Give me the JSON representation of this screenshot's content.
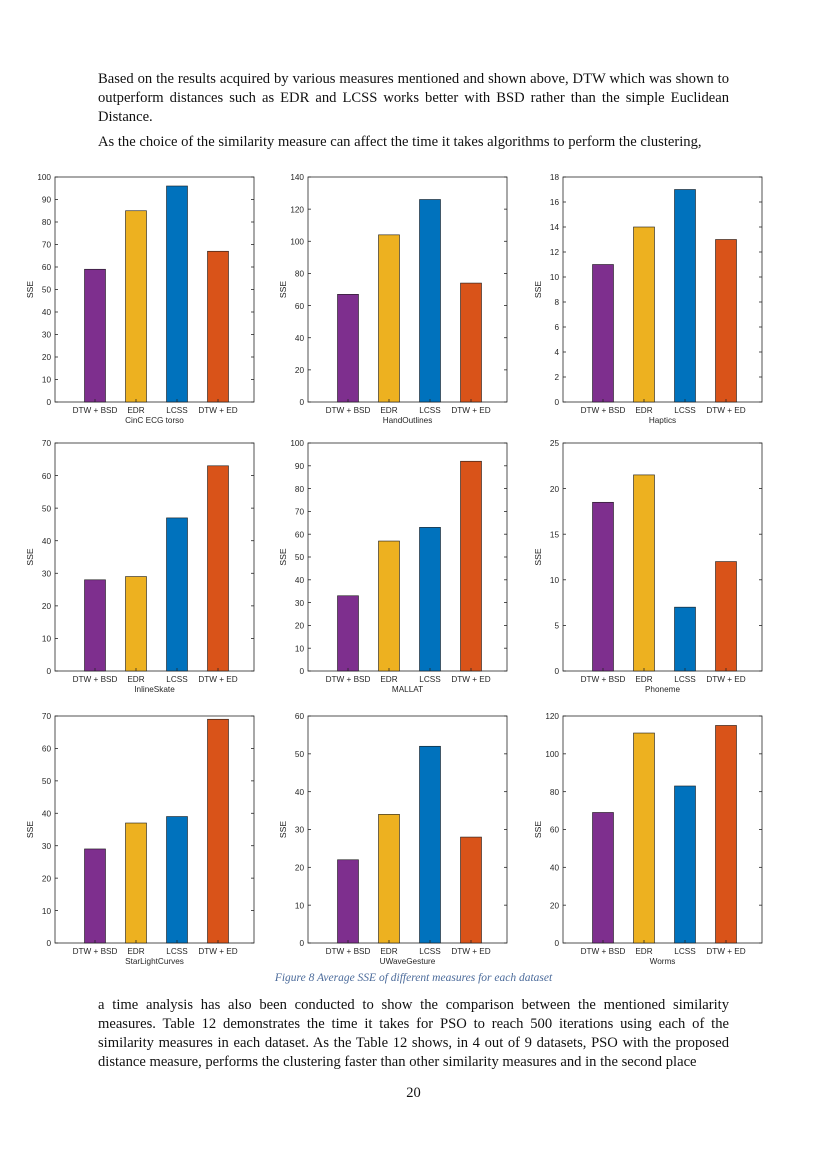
{
  "paragraphs": {
    "p1": "Based on the results acquired by various measures mentioned and shown above, DTW which was shown to outperform distances such as EDR and LCSS works better with BSD rather than the simple Euclidean Distance.",
    "p2": "As the choice of the similarity measure can affect the time it takes algorithms to perform the clustering,",
    "p3": "a time analysis has also been conducted to show the comparison between the mentioned similarity measures. Table 12 demonstrates the time it takes for PSO to reach 500 iterations using each of the similarity measures in each dataset. As the Table 12 shows, in 4 out of 9 datasets, PSO with the proposed distance measure, performs the clustering faster than other similarity measures and in the second place"
  },
  "figure_caption": "Figure 8 Average SSE of different measures for each dataset",
  "page_number": "20",
  "colors": {
    "DTW + BSD": "#7e2f8e",
    "EDR": "#edb120",
    "LCSS": "#0072bd",
    "DTW + ED": "#d95319",
    "caption": "#4a6a9a"
  },
  "chart_data": [
    {
      "type": "bar",
      "title": "CinC ECG torso",
      "ylabel": "SSE",
      "categories": [
        "DTW + BSD",
        "EDR",
        "LCSS",
        "DTW + ED"
      ],
      "values": [
        59,
        85,
        96,
        67
      ],
      "ylim": [
        0,
        100
      ],
      "yticks": [
        0,
        10,
        20,
        30,
        40,
        50,
        60,
        70,
        80,
        90,
        100
      ]
    },
    {
      "type": "bar",
      "title": "HandOutlines",
      "ylabel": "SSE",
      "categories": [
        "DTW + BSD",
        "EDR",
        "LCSS",
        "DTW + ED"
      ],
      "values": [
        67,
        104,
        126,
        74
      ],
      "ylim": [
        0,
        140
      ],
      "yticks": [
        0,
        20,
        40,
        60,
        80,
        100,
        120,
        140
      ]
    },
    {
      "type": "bar",
      "title": "Haptics",
      "ylabel": "SSE",
      "categories": [
        "DTW + BSD",
        "EDR",
        "LCSS",
        "DTW + ED"
      ],
      "values": [
        11,
        14,
        17,
        13
      ],
      "ylim": [
        0,
        18
      ],
      "yticks": [
        0,
        2,
        4,
        6,
        8,
        10,
        12,
        14,
        16,
        18
      ]
    },
    {
      "type": "bar",
      "title": "InlineSkate",
      "ylabel": "SSE",
      "categories": [
        "DTW + BSD",
        "EDR",
        "LCSS",
        "DTW + ED"
      ],
      "values": [
        28,
        29,
        47,
        63
      ],
      "ylim": [
        0,
        70
      ],
      "yticks": [
        0,
        10,
        20,
        30,
        40,
        50,
        60,
        70
      ]
    },
    {
      "type": "bar",
      "title": "MALLAT",
      "ylabel": "SSE",
      "categories": [
        "DTW + BSD",
        "EDR",
        "LCSS",
        "DTW + ED"
      ],
      "values": [
        33,
        57,
        63,
        92
      ],
      "ylim": [
        0,
        100
      ],
      "yticks": [
        0,
        10,
        20,
        30,
        40,
        50,
        60,
        70,
        80,
        90,
        100
      ]
    },
    {
      "type": "bar",
      "title": "Phoneme",
      "ylabel": "SSE",
      "categories": [
        "DTW + BSD",
        "EDR",
        "LCSS",
        "DTW + ED"
      ],
      "values": [
        18.5,
        21.5,
        7,
        12
      ],
      "ylim": [
        0,
        25
      ],
      "yticks": [
        0,
        5,
        10,
        15,
        20,
        25
      ]
    },
    {
      "type": "bar",
      "title": "StarLightCurves",
      "ylabel": "SSE",
      "categories": [
        "DTW + BSD",
        "EDR",
        "LCSS",
        "DTW + ED"
      ],
      "values": [
        29,
        37,
        39,
        69
      ],
      "ylim": [
        0,
        70
      ],
      "yticks": [
        0,
        10,
        20,
        30,
        40,
        50,
        60,
        70
      ]
    },
    {
      "type": "bar",
      "title": "UWaveGesture",
      "ylabel": "SSE",
      "categories": [
        "DTW + BSD",
        "EDR",
        "LCSS",
        "DTW + ED"
      ],
      "values": [
        22,
        34,
        52,
        28
      ],
      "ylim": [
        0,
        60
      ],
      "yticks": [
        0,
        10,
        20,
        30,
        40,
        50,
        60
      ]
    },
    {
      "type": "bar",
      "title": "Worms",
      "ylabel": "SSE",
      "categories": [
        "DTW + BSD",
        "EDR",
        "LCSS",
        "DTW + ED"
      ],
      "values": [
        69,
        111,
        83,
        115
      ],
      "ylim": [
        0,
        120
      ],
      "yticks": [
        0,
        20,
        40,
        60,
        80,
        100,
        120
      ]
    }
  ]
}
